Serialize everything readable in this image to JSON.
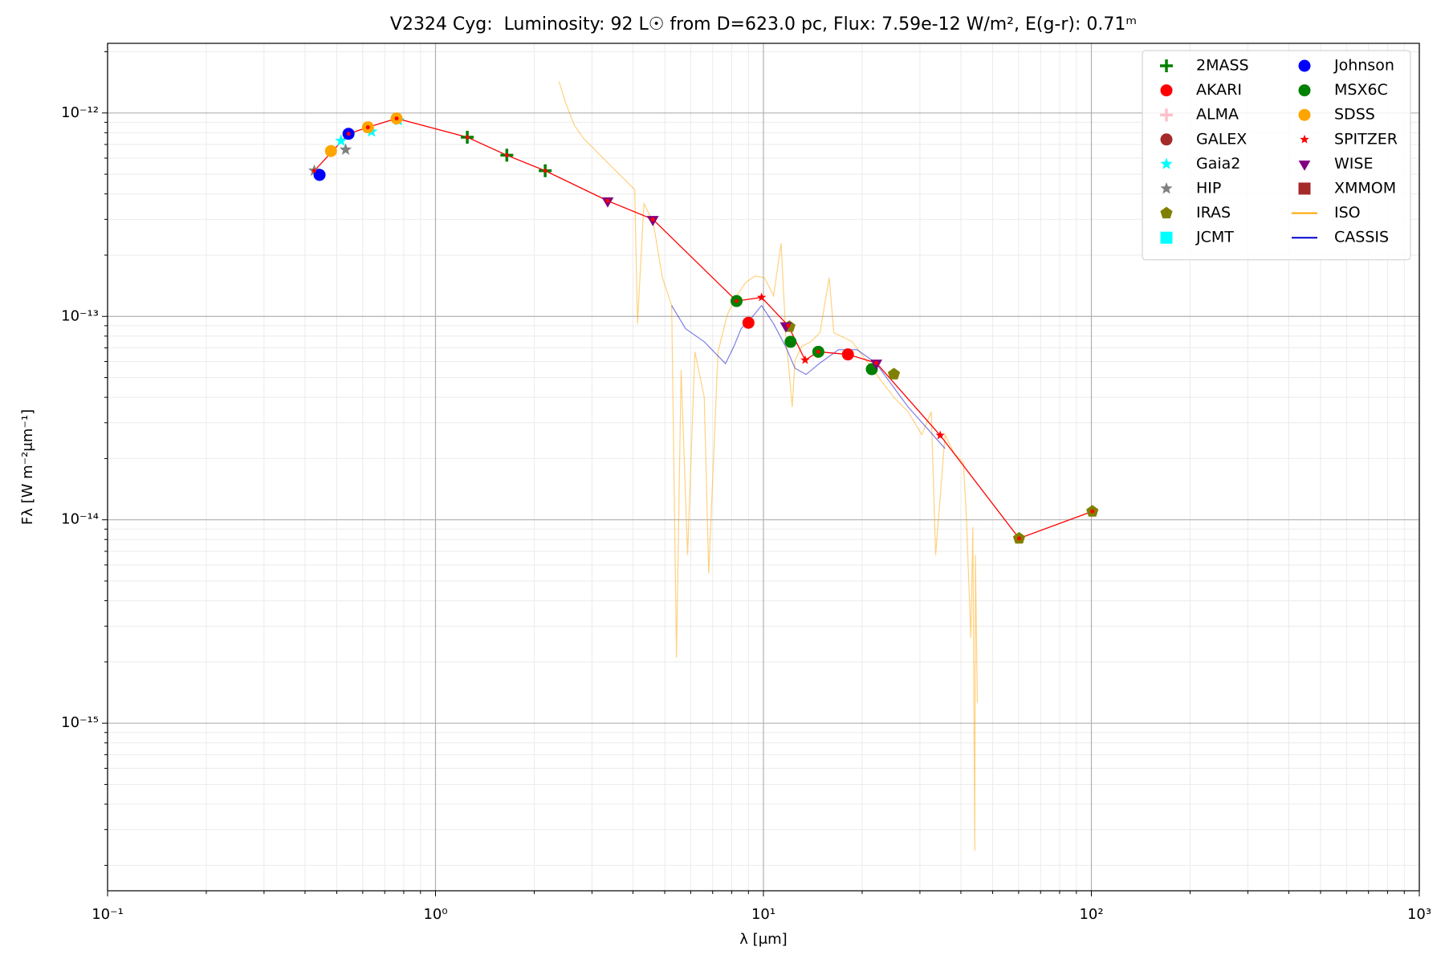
{
  "chart_data": {
    "type": "scatter",
    "title": "V2324 Cyg:  Luminosity: 92 L☉ from D=623.0 pc, Flux: 7.59e-12 W/m², E(g-r): 0.71ᵐ",
    "x_label": "λ [μm]",
    "y_label": "Fλ [W m⁻²μm⁻¹]",
    "xscale": "log",
    "yscale": "log",
    "grid": true,
    "legend": "upper right",
    "xlim": [
      0.1,
      1000
    ],
    "ylim": [
      1.5e-16,
      2.2e-12
    ],
    "xticks": [
      {
        "value": 0.1,
        "label": "10⁻¹"
      },
      {
        "value": 1,
        "label": "10⁰"
      },
      {
        "value": 10,
        "label": "10¹"
      },
      {
        "value": 100,
        "label": "10²"
      },
      {
        "value": 1000,
        "label": "10³"
      }
    ],
    "yticks": [
      {
        "value": 1e-15,
        "label": "10⁻¹⁵"
      },
      {
        "value": 1e-14,
        "label": "10⁻¹⁴"
      },
      {
        "value": 1e-13,
        "label": "10⁻¹³"
      },
      {
        "value": 1e-12,
        "label": "10⁻¹²"
      }
    ],
    "xminor_ticks": [
      0.2,
      0.3,
      0.4,
      0.5,
      0.6,
      0.7,
      0.8,
      0.9,
      2,
      3,
      4,
      5,
      6,
      7,
      8,
      9,
      20,
      30,
      40,
      50,
      60,
      70,
      80,
      90,
      200,
      300,
      400,
      500,
      600,
      700,
      800,
      900
    ],
    "yminor_ticks": [
      2e-16,
      3e-16,
      4e-16,
      5e-16,
      6e-16,
      7e-16,
      8e-16,
      9e-16,
      2e-15,
      3e-15,
      4e-15,
      5e-15,
      6e-15,
      7e-15,
      8e-15,
      9e-15,
      2e-14,
      3e-14,
      4e-14,
      5e-14,
      6e-14,
      7e-14,
      8e-14,
      9e-14,
      2e-13,
      3e-13,
      4e-13,
      5e-13,
      6e-13,
      7e-13,
      8e-13,
      9e-13,
      2e-12
    ],
    "sed_line": {
      "color": "#ff0000",
      "x": [
        0.427,
        0.543,
        0.622,
        0.761,
        1.25,
        1.65,
        2.16,
        3.35,
        4.6,
        8.28,
        9.87,
        11.9,
        13.4,
        14.7,
        18.1,
        22.1,
        34.6,
        60.2,
        100.7
      ],
      "y": [
        5.2e-13,
        7.9e-13,
        8.5e-13,
        9.4e-13,
        7.6e-13,
        6.2e-13,
        5.2e-13,
        3.7e-13,
        3e-13,
        1.19e-13,
        1.24e-13,
        9e-14,
        6.1e-14,
        6.7e-14,
        6.5e-14,
        5.9e-14,
        2.6e-14,
        8.1e-15,
        1.1e-14
      ]
    },
    "series": [
      {
        "name": "2MASS",
        "color": "#008000",
        "marker": "plus",
        "x": [
          1.25,
          1.65,
          2.16
        ],
        "y": [
          7.6e-13,
          6.2e-13,
          5.2e-13
        ]
      },
      {
        "name": "AKARI",
        "color": "#ff0000",
        "marker": "circle",
        "x": [
          9.0,
          18.1
        ],
        "y": [
          9.3e-14,
          6.5e-14
        ]
      },
      {
        "name": "ALMA",
        "color": "#ffc0cb",
        "marker": "plus",
        "x": [],
        "y": []
      },
      {
        "name": "GALEX",
        "color": "#a52a2a",
        "marker": "circle",
        "x": [],
        "y": []
      },
      {
        "name": "Gaia2",
        "color": "#00ffff",
        "marker": "star",
        "x": [
          0.515,
          0.638,
          0.771
        ],
        "y": [
          7.3e-13,
          8.1e-13,
          9.2e-13
        ]
      },
      {
        "name": "HIP",
        "color": "#808080",
        "marker": "star",
        "x": [
          0.427,
          0.532
        ],
        "y": [
          5.2e-13,
          6.6e-13
        ]
      },
      {
        "name": "IRAS",
        "color": "#808000",
        "marker": "pentagon",
        "x": [
          12,
          25.0,
          60.2,
          100.7
        ],
        "y": [
          8.9e-14,
          5.2e-14,
          8.1e-15,
          1.1e-14
        ]
      },
      {
        "name": "JCMT",
        "color": "#00ffff",
        "marker": "square",
        "x": [],
        "y": []
      },
      {
        "name": "Johnson",
        "color": "#0000ff",
        "marker": "circle",
        "x": [
          0.443,
          0.543
        ],
        "y": [
          4.96e-13,
          7.9e-13
        ]
      },
      {
        "name": "MSX6C",
        "color": "#008000",
        "marker": "circle",
        "x": [
          8.28,
          12.1,
          14.7,
          21.4
        ],
        "y": [
          1.19e-13,
          7.5e-14,
          6.7e-14,
          5.5e-14
        ]
      },
      {
        "name": "SDSS",
        "color": "#ffa500",
        "marker": "circle",
        "x": [
          0.48,
          0.622,
          0.761
        ],
        "y": [
          6.5e-13,
          8.5e-13,
          9.4e-13
        ]
      },
      {
        "name": "SPITZER",
        "color": "#ff0000",
        "marker": "smallstar",
        "x": [
          9.87,
          13.4,
          34.6
        ],
        "y": [
          1.24e-13,
          6.1e-14,
          2.6e-14
        ]
      },
      {
        "name": "WISE",
        "color": "#800080",
        "marker": "triangle",
        "x": [
          3.35,
          4.6,
          11.7,
          22.1
        ],
        "y": [
          3.7e-13,
          3e-13,
          9e-14,
          5.9e-14
        ]
      },
      {
        "name": "XMMOM",
        "color": "#a52a2a",
        "marker": "square",
        "x": [],
        "y": []
      },
      {
        "name": "ISO",
        "color": "#ffa500",
        "marker": "line",
        "x": [
          2.38,
          2.49,
          2.65,
          2.83,
          3.12,
          3.44,
          3.8,
          4.05,
          4.13,
          4.32,
          4.61,
          4.92,
          5.25,
          5.43,
          5.61,
          5.87,
          6.18,
          6.6,
          6.81,
          7.27,
          7.76,
          8.28,
          8.84,
          9.43,
          10.07,
          10.74,
          11.32,
          11.69,
          12.24,
          12.48,
          13.06,
          13.93,
          14.87,
          15.87,
          16.39,
          17.5,
          18.67,
          20.59,
          22.7,
          25.0,
          27.6,
          30.4,
          32.5,
          33.5,
          35.8,
          38.2,
          40.7,
          41.6,
          42.9,
          43.5,
          44.1,
          44.3,
          44.9
        ],
        "y": [
          1.43e-12,
          1.13e-12,
          8.7e-13,
          7.5e-13,
          6.4e-13,
          5.45e-13,
          4.66e-13,
          4.2e-13,
          9.2e-14,
          3.59e-13,
          2.91e-13,
          1.55e-13,
          1.13e-13,
          2.1e-15,
          5.45e-14,
          6.7e-15,
          6.7e-14,
          4e-14,
          5.45e-15,
          6.7e-14,
          1.02e-13,
          1.26e-13,
          1.47e-13,
          1.58e-13,
          1.55e-13,
          1.26e-13,
          2.29e-13,
          8.3e-14,
          3.59e-14,
          6.05e-14,
          7.1e-14,
          7.5e-14,
          8.3e-14,
          1.55e-13,
          8.3e-14,
          7.9e-14,
          7.5e-14,
          6.05e-14,
          4.9e-14,
          4e-14,
          3.4e-14,
          2.62e-14,
          3.4e-14,
          6.7e-15,
          2.62e-14,
          2.12e-14,
          1.91e-14,
          1.02e-14,
          2.62e-15,
          9.2e-15,
          2.36e-16,
          6.7e-15,
          1.26e-15
        ]
      },
      {
        "name": "CASSIS",
        "color": "#0000cc",
        "marker": "line",
        "x": [
          5.25,
          5.79,
          6.6,
          7.66,
          8.12,
          8.55,
          9.13,
          9.87,
          10.74,
          11.69,
          12.48,
          13.49,
          14.87,
          16.94,
          19.3,
          22.0,
          27.6,
          35.8
        ],
        "y": [
          1.13e-13,
          8.7e-14,
          7.5e-14,
          5.86e-14,
          7.1e-14,
          8.7e-14,
          9.7e-14,
          1.13e-13,
          9.2e-14,
          7.1e-14,
          5.56e-14,
          5.18e-14,
          5.9e-14,
          6.86e-14,
          6.86e-14,
          5.9e-14,
          3.59e-14,
          2.24e-14
        ]
      }
    ]
  }
}
